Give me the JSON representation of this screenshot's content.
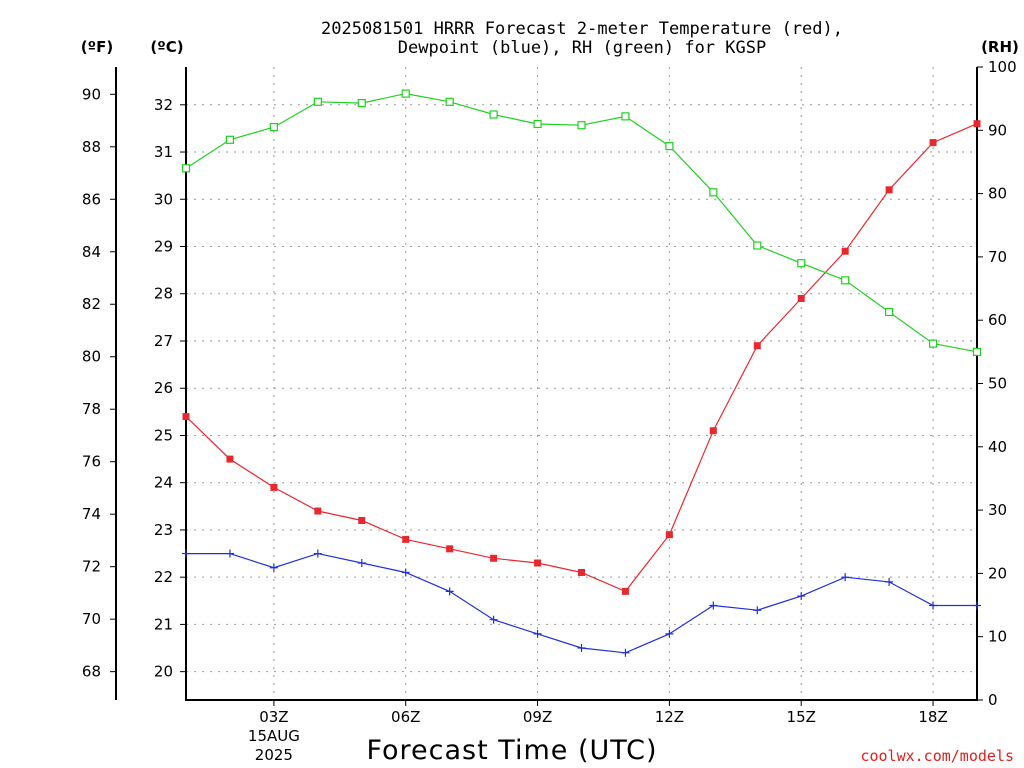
{
  "chart_data": {
    "type": "line",
    "title_line1": "2025081501 HRRR Forecast 2-meter Temperature (red),",
    "title_line2": "Dewpoint (blue), RH (green) for KGSP",
    "xlabel": "Forecast Time (UTC)",
    "credit": "coolwx.com/models",
    "left_unit_f": "(ºF)",
    "left_unit_c": "(ºC)",
    "right_unit": "(RH)",
    "x_ticks": [
      {
        "hour": 3,
        "label": "03Z",
        "sub1": "15AUG",
        "sub2": "2025"
      },
      {
        "hour": 6,
        "label": "06Z",
        "sub1": "",
        "sub2": ""
      },
      {
        "hour": 9,
        "label": "09Z",
        "sub1": "",
        "sub2": ""
      },
      {
        "hour": 12,
        "label": "12Z",
        "sub1": "",
        "sub2": ""
      },
      {
        "hour": 15,
        "label": "15Z",
        "sub1": "",
        "sub2": ""
      },
      {
        "hour": 18,
        "label": "18Z",
        "sub1": "",
        "sub2": ""
      }
    ],
    "xlim": [
      1,
      19
    ],
    "ylim_c": [
      19.4,
      32.8
    ],
    "ylim_rh": [
      0,
      100
    ],
    "f_ticks": [
      68,
      70,
      72,
      74,
      76,
      78,
      80,
      82,
      84,
      86,
      88,
      90
    ],
    "c_ticks": [
      20,
      21,
      22,
      23,
      24,
      25,
      26,
      27,
      28,
      29,
      30,
      31,
      32
    ],
    "rh_ticks": [
      0,
      10,
      20,
      30,
      40,
      50,
      60,
      70,
      80,
      90,
      100
    ],
    "hours": [
      1,
      2,
      3,
      4,
      5,
      6,
      7,
      8,
      9,
      10,
      11,
      12,
      13,
      14,
      15,
      16,
      17,
      18,
      19
    ],
    "series": [
      {
        "name": "Temperature",
        "color": "#e8282f",
        "marker": "filled-square",
        "axis": "c",
        "values": [
          25.4,
          24.5,
          23.9,
          23.4,
          23.2,
          22.8,
          22.6,
          22.4,
          22.3,
          22.1,
          21.7,
          22.9,
          25.1,
          26.9,
          27.9,
          28.9,
          30.2,
          31.2,
          31.6
        ]
      },
      {
        "name": "Dewpoint",
        "color": "#2030d8",
        "marker": "plus",
        "axis": "c",
        "values": [
          22.5,
          22.5,
          22.2,
          22.5,
          22.3,
          22.1,
          21.7,
          21.1,
          20.8,
          20.5,
          20.4,
          20.8,
          21.4,
          21.3,
          21.6,
          22.0,
          21.9,
          21.4,
          21.4
        ]
      },
      {
        "name": "RH",
        "color": "#20d020",
        "marker": "open-square",
        "axis": "rh",
        "values": [
          84,
          88.5,
          90.5,
          94.5,
          94.3,
          95.8,
          94.5,
          92.5,
          91,
          90.8,
          92.2,
          87.5,
          80.2,
          71.8,
          69,
          66.3,
          61.3,
          56.3,
          55
        ]
      }
    ]
  }
}
